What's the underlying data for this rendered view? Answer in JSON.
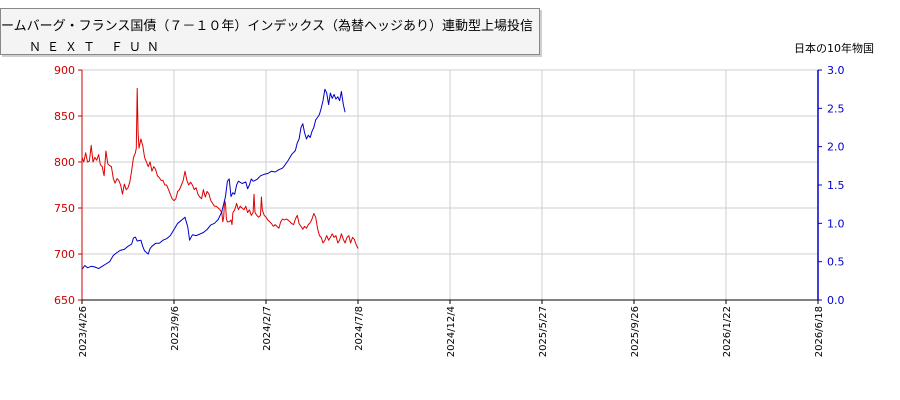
{
  "title": {
    "line1": "ームバーグ・フランス国債（７－１０年）インデックス（為替ヘッジあり）連動型上場投信",
    "line2": "ＮＥＸＴ ＦＵＮ"
  },
  "chart_data": {
    "type": "line",
    "right_axis_title": "日本の10年物国",
    "x_tick_labels": [
      "2023/4/26",
      "2023/9/6",
      "2024/2/7",
      "2024/7/8",
      "2024/12/4",
      "2025/5/27",
      "2025/9/26",
      "2026/1/22",
      "2026/6/18"
    ],
    "left_axis": {
      "ylim": [
        650,
        900
      ],
      "ticks": [
        "650",
        "700",
        "750",
        "800",
        "850",
        "900"
      ],
      "color": "#d00000"
    },
    "right_axis": {
      "ylim": [
        0.0,
        3.0
      ],
      "ticks": [
        "0.0",
        "0.5",
        "1.0",
        "1.5",
        "2.0",
        "2.5",
        "3.0"
      ],
      "color": "#0000cc"
    },
    "grid": true,
    "series": [
      {
        "axis": "left",
        "color": "#dd0000",
        "points": [
          [
            0,
            805
          ],
          [
            0.02,
            800
          ],
          [
            0.04,
            810
          ],
          [
            0.06,
            800
          ],
          [
            0.08,
            801
          ],
          [
            0.1,
            818
          ],
          [
            0.12,
            800
          ],
          [
            0.14,
            805
          ],
          [
            0.16,
            802
          ],
          [
            0.18,
            808
          ],
          [
            0.2,
            797
          ],
          [
            0.22,
            795
          ],
          [
            0.24,
            785
          ],
          [
            0.26,
            812
          ],
          [
            0.28,
            798
          ],
          [
            0.3,
            796
          ],
          [
            0.32,
            795
          ],
          [
            0.34,
            782
          ],
          [
            0.36,
            777
          ],
          [
            0.38,
            782
          ],
          [
            0.4,
            780
          ],
          [
            0.42,
            775
          ],
          [
            0.44,
            765
          ],
          [
            0.46,
            776
          ],
          [
            0.48,
            770
          ],
          [
            0.5,
            772
          ],
          [
            0.52,
            778
          ],
          [
            0.54,
            791
          ],
          [
            0.56,
            805
          ],
          [
            0.58,
            810
          ],
          [
            0.59,
            815
          ],
          [
            0.6,
            880
          ],
          [
            0.61,
            832
          ],
          [
            0.62,
            815
          ],
          [
            0.64,
            825
          ],
          [
            0.66,
            818
          ],
          [
            0.68,
            805
          ],
          [
            0.7,
            800
          ],
          [
            0.72,
            795
          ],
          [
            0.74,
            800
          ],
          [
            0.76,
            790
          ],
          [
            0.78,
            795
          ],
          [
            0.8,
            792
          ],
          [
            0.82,
            785
          ],
          [
            0.84,
            783
          ],
          [
            0.86,
            780
          ],
          [
            0.88,
            780
          ],
          [
            0.9,
            775
          ],
          [
            0.92,
            775
          ],
          [
            0.94,
            770
          ],
          [
            0.96,
            765
          ],
          [
            0.98,
            760
          ],
          [
            1.0,
            758
          ],
          [
            1.02,
            760
          ],
          [
            1.04,
            768
          ],
          [
            1.06,
            770
          ],
          [
            1.08,
            775
          ],
          [
            1.1,
            780
          ],
          [
            1.12,
            790
          ],
          [
            1.14,
            780
          ],
          [
            1.16,
            775
          ],
          [
            1.18,
            778
          ],
          [
            1.2,
            775
          ],
          [
            1.22,
            770
          ],
          [
            1.24,
            772
          ],
          [
            1.26,
            765
          ],
          [
            1.28,
            762
          ],
          [
            1.3,
            760
          ],
          [
            1.32,
            770
          ],
          [
            1.34,
            762
          ],
          [
            1.36,
            768
          ],
          [
            1.38,
            765
          ],
          [
            1.4,
            758
          ],
          [
            1.42,
            755
          ],
          [
            1.44,
            752
          ],
          [
            1.46,
            752
          ],
          [
            1.48,
            750
          ],
          [
            1.5,
            748
          ],
          [
            1.52,
            745
          ],
          [
            1.53,
            735
          ],
          [
            1.54,
            740
          ],
          [
            1.55,
            758
          ],
          [
            1.56,
            755
          ],
          [
            1.57,
            738
          ],
          [
            1.58,
            735
          ],
          [
            1.6,
            735
          ],
          [
            1.62,
            737
          ],
          [
            1.63,
            732
          ],
          [
            1.64,
            745
          ],
          [
            1.66,
            748
          ],
          [
            1.68,
            755
          ],
          [
            1.7,
            748
          ],
          [
            1.72,
            752
          ],
          [
            1.74,
            750
          ],
          [
            1.76,
            748
          ],
          [
            1.78,
            752
          ],
          [
            1.8,
            745
          ],
          [
            1.82,
            748
          ],
          [
            1.84,
            742
          ],
          [
            1.86,
            745
          ],
          [
            1.87,
            765
          ],
          [
            1.88,
            745
          ],
          [
            1.9,
            742
          ],
          [
            1.92,
            740
          ],
          [
            1.94,
            742
          ],
          [
            1.95,
            762
          ],
          [
            1.96,
            748
          ],
          [
            1.98,
            742
          ],
          [
            2.0,
            740
          ],
          [
            2.02,
            737
          ],
          [
            2.04,
            735
          ],
          [
            2.06,
            733
          ],
          [
            2.08,
            730
          ],
          [
            2.1,
            732
          ],
          [
            2.12,
            730
          ],
          [
            2.14,
            728
          ],
          [
            2.16,
            735
          ],
          [
            2.18,
            738
          ],
          [
            2.2,
            737
          ],
          [
            2.22,
            738
          ],
          [
            2.24,
            737
          ],
          [
            2.26,
            735
          ],
          [
            2.28,
            733
          ],
          [
            2.3,
            732
          ],
          [
            2.32,
            738
          ],
          [
            2.34,
            742
          ],
          [
            2.36,
            733
          ],
          [
            2.38,
            730
          ],
          [
            2.4,
            727
          ],
          [
            2.42,
            730
          ],
          [
            2.44,
            728
          ],
          [
            2.46,
            732
          ],
          [
            2.48,
            734
          ],
          [
            2.5,
            738
          ],
          [
            2.52,
            744
          ],
          [
            2.54,
            740
          ],
          [
            2.56,
            728
          ],
          [
            2.58,
            720
          ],
          [
            2.6,
            718
          ],
          [
            2.62,
            712
          ],
          [
            2.64,
            715
          ],
          [
            2.66,
            720
          ],
          [
            2.68,
            715
          ],
          [
            2.7,
            718
          ],
          [
            2.72,
            722
          ],
          [
            2.74,
            718
          ],
          [
            2.76,
            720
          ],
          [
            2.78,
            712
          ],
          [
            2.8,
            715
          ],
          [
            2.82,
            722
          ],
          [
            2.84,
            716
          ],
          [
            2.86,
            712
          ],
          [
            2.88,
            718
          ],
          [
            2.9,
            720
          ],
          [
            2.92,
            712
          ],
          [
            2.94,
            718
          ],
          [
            2.96,
            716
          ],
          [
            2.98,
            710
          ],
          [
            3.0,
            706
          ]
        ]
      },
      {
        "axis": "right",
        "color": "#0000cc",
        "points": [
          [
            0,
            0.4
          ],
          [
            0.03,
            0.45
          ],
          [
            0.06,
            0.42
          ],
          [
            0.1,
            0.44
          ],
          [
            0.14,
            0.43
          ],
          [
            0.18,
            0.41
          ],
          [
            0.22,
            0.44
          ],
          [
            0.26,
            0.47
          ],
          [
            0.3,
            0.5
          ],
          [
            0.34,
            0.58
          ],
          [
            0.38,
            0.62
          ],
          [
            0.42,
            0.65
          ],
          [
            0.46,
            0.66
          ],
          [
            0.5,
            0.7
          ],
          [
            0.54,
            0.73
          ],
          [
            0.56,
            0.81
          ],
          [
            0.58,
            0.82
          ],
          [
            0.6,
            0.77
          ],
          [
            0.64,
            0.78
          ],
          [
            0.66,
            0.7
          ],
          [
            0.68,
            0.64
          ],
          [
            0.7,
            0.62
          ],
          [
            0.72,
            0.6
          ],
          [
            0.74,
            0.67
          ],
          [
            0.76,
            0.7
          ],
          [
            0.8,
            0.74
          ],
          [
            0.84,
            0.74
          ],
          [
            0.88,
            0.78
          ],
          [
            0.92,
            0.8
          ],
          [
            0.96,
            0.84
          ],
          [
            1.0,
            0.92
          ],
          [
            1.04,
            1.0
          ],
          [
            1.08,
            1.04
          ],
          [
            1.12,
            1.08
          ],
          [
            1.15,
            0.95
          ],
          [
            1.17,
            0.78
          ],
          [
            1.2,
            0.85
          ],
          [
            1.24,
            0.84
          ],
          [
            1.28,
            0.86
          ],
          [
            1.32,
            0.88
          ],
          [
            1.36,
            0.92
          ],
          [
            1.4,
            0.98
          ],
          [
            1.44,
            1.0
          ],
          [
            1.48,
            1.05
          ],
          [
            1.52,
            1.15
          ],
          [
            1.56,
            1.35
          ],
          [
            1.58,
            1.55
          ],
          [
            1.6,
            1.58
          ],
          [
            1.62,
            1.35
          ],
          [
            1.64,
            1.4
          ],
          [
            1.66,
            1.38
          ],
          [
            1.68,
            1.5
          ],
          [
            1.7,
            1.55
          ],
          [
            1.74,
            1.52
          ],
          [
            1.78,
            1.54
          ],
          [
            1.8,
            1.45
          ],
          [
            1.82,
            1.5
          ],
          [
            1.84,
            1.58
          ],
          [
            1.86,
            1.55
          ],
          [
            1.9,
            1.57
          ],
          [
            1.94,
            1.62
          ],
          [
            1.98,
            1.64
          ],
          [
            2.02,
            1.65
          ],
          [
            2.06,
            1.68
          ],
          [
            2.1,
            1.67
          ],
          [
            2.14,
            1.7
          ],
          [
            2.18,
            1.72
          ],
          [
            2.2,
            1.75
          ],
          [
            2.24,
            1.82
          ],
          [
            2.28,
            1.9
          ],
          [
            2.32,
            1.95
          ],
          [
            2.34,
            2.05
          ],
          [
            2.36,
            2.1
          ],
          [
            2.38,
            2.25
          ],
          [
            2.4,
            2.3
          ],
          [
            2.42,
            2.18
          ],
          [
            2.44,
            2.1
          ],
          [
            2.46,
            2.15
          ],
          [
            2.48,
            2.12
          ],
          [
            2.5,
            2.2
          ],
          [
            2.52,
            2.25
          ],
          [
            2.54,
            2.35
          ],
          [
            2.56,
            2.38
          ],
          [
            2.58,
            2.42
          ],
          [
            2.6,
            2.5
          ],
          [
            2.62,
            2.6
          ],
          [
            2.64,
            2.75
          ],
          [
            2.66,
            2.7
          ],
          [
            2.68,
            2.55
          ],
          [
            2.7,
            2.7
          ],
          [
            2.72,
            2.63
          ],
          [
            2.74,
            2.68
          ],
          [
            2.76,
            2.62
          ],
          [
            2.78,
            2.65
          ],
          [
            2.8,
            2.6
          ],
          [
            2.82,
            2.72
          ],
          [
            2.84,
            2.55
          ],
          [
            2.86,
            2.45
          ]
        ]
      }
    ]
  }
}
